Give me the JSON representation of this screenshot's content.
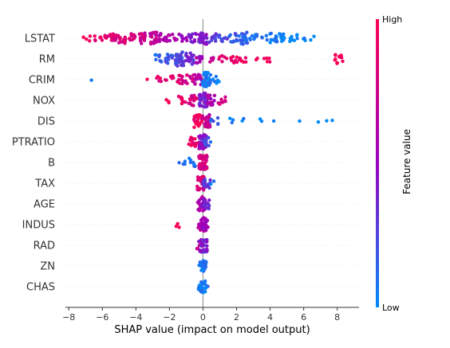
{
  "chart_data": {
    "type": "scatter",
    "subtype": "shap-beeswarm",
    "title": "",
    "xlabel": "SHAP value (impact on model output)",
    "xlim": [
      -8.2,
      9.3
    ],
    "xticks": [
      -8,
      -6,
      -4,
      -2,
      0,
      2,
      4,
      6,
      8
    ],
    "colorbar": {
      "label": "Feature value",
      "high_label": "High",
      "low_label": "Low",
      "high_color": "#ff0052",
      "mid_color": "#9a00c0",
      "low_color": "#008bfb"
    },
    "features": [
      {
        "name": "LSTAT",
        "spread": [
          {
            "x": -7.2,
            "v": 0.96,
            "n": 2
          },
          {
            "x": -6.6,
            "v": 0.9,
            "n": 5
          },
          {
            "x": -6.0,
            "v": 0.88,
            "n": 8
          },
          {
            "x": -5.4,
            "v": 0.85,
            "n": 14
          },
          {
            "x": -4.8,
            "v": 0.82,
            "n": 14
          },
          {
            "x": -4.2,
            "v": 0.78,
            "n": 10
          },
          {
            "x": -3.6,
            "v": 0.74,
            "n": 16
          },
          {
            "x": -3.0,
            "v": 0.7,
            "n": 22
          },
          {
            "x": -2.4,
            "v": 0.62,
            "n": 14
          },
          {
            "x": -1.8,
            "v": 0.55,
            "n": 8
          },
          {
            "x": -1.2,
            "v": 0.5,
            "n": 8
          },
          {
            "x": -0.6,
            "v": 0.45,
            "n": 12
          },
          {
            "x": 0.0,
            "v": 0.4,
            "n": 24
          },
          {
            "x": 0.6,
            "v": 0.32,
            "n": 10
          },
          {
            "x": 1.2,
            "v": 0.25,
            "n": 8
          },
          {
            "x": 1.8,
            "v": 0.18,
            "n": 12
          },
          {
            "x": 2.4,
            "v": 0.12,
            "n": 20
          },
          {
            "x": 3.0,
            "v": 0.08,
            "n": 8
          },
          {
            "x": 3.6,
            "v": 0.06,
            "n": 4
          },
          {
            "x": 4.2,
            "v": 0.04,
            "n": 14
          },
          {
            "x": 4.8,
            "v": 0.03,
            "n": 10
          },
          {
            "x": 5.4,
            "v": 0.02,
            "n": 8
          },
          {
            "x": 6.0,
            "v": 0.02,
            "n": 3
          },
          {
            "x": 6.5,
            "v": 0.01,
            "n": 2
          }
        ]
      },
      {
        "name": "RM",
        "spread": [
          {
            "x": -2.6,
            "v": 0.15,
            "n": 8
          },
          {
            "x": -2.0,
            "v": 0.2,
            "n": 16
          },
          {
            "x": -1.4,
            "v": 0.25,
            "n": 30
          },
          {
            "x": -0.8,
            "v": 0.35,
            "n": 20
          },
          {
            "x": -0.2,
            "v": 0.55,
            "n": 10
          },
          {
            "x": 0.4,
            "v": 0.7,
            "n": 6
          },
          {
            "x": 1.2,
            "v": 0.9,
            "n": 6
          },
          {
            "x": 1.8,
            "v": 0.92,
            "n": 8
          },
          {
            "x": 2.4,
            "v": 0.93,
            "n": 8
          },
          {
            "x": 3.2,
            "v": 0.95,
            "n": 2
          },
          {
            "x": 3.8,
            "v": 0.96,
            "n": 5
          },
          {
            "x": 8.1,
            "v": 0.99,
            "n": 12
          }
        ]
      },
      {
        "name": "CRIM",
        "spread": [
          {
            "x": -6.8,
            "v": 0.15,
            "n": 1
          },
          {
            "x": -3.2,
            "v": 0.9,
            "n": 1
          },
          {
            "x": -2.6,
            "v": 0.88,
            "n": 5
          },
          {
            "x": -2.0,
            "v": 0.86,
            "n": 6
          },
          {
            "x": -1.4,
            "v": 0.82,
            "n": 10
          },
          {
            "x": -0.8,
            "v": 0.78,
            "n": 12
          },
          {
            "x": -0.3,
            "v": 0.6,
            "n": 14
          },
          {
            "x": 0.2,
            "v": 0.05,
            "n": 40
          },
          {
            "x": 0.8,
            "v": 0.05,
            "n": 6
          }
        ]
      },
      {
        "name": "NOX",
        "spread": [
          {
            "x": -2.2,
            "v": 0.95,
            "n": 3
          },
          {
            "x": -1.2,
            "v": 0.9,
            "n": 8
          },
          {
            "x": -0.6,
            "v": 0.8,
            "n": 18
          },
          {
            "x": 0.0,
            "v": 0.4,
            "n": 36
          },
          {
            "x": 0.5,
            "v": 0.6,
            "n": 14
          },
          {
            "x": 1.1,
            "v": 0.8,
            "n": 8
          }
        ]
      },
      {
        "name": "DIS",
        "spread": [
          {
            "x": -0.3,
            "v": 0.95,
            "n": 24
          },
          {
            "x": 0.2,
            "v": 0.7,
            "n": 24
          },
          {
            "x": 0.7,
            "v": 0.15,
            "n": 6
          },
          {
            "x": 1.6,
            "v": 0.05,
            "n": 3
          },
          {
            "x": 2.4,
            "v": 0.05,
            "n": 2
          },
          {
            "x": 3.4,
            "v": 0.05,
            "n": 2
          },
          {
            "x": 4.1,
            "v": 0.05,
            "n": 1
          },
          {
            "x": 5.8,
            "v": 0.05,
            "n": 1
          },
          {
            "x": 6.7,
            "v": 0.05,
            "n": 1
          },
          {
            "x": 7.3,
            "v": 0.05,
            "n": 1
          },
          {
            "x": 7.9,
            "v": 0.05,
            "n": 1
          }
        ]
      },
      {
        "name": "PTRATIO",
        "spread": [
          {
            "x": -1.0,
            "v": 0.95,
            "n": 2
          },
          {
            "x": -0.5,
            "v": 0.9,
            "n": 14
          },
          {
            "x": 0.0,
            "v": 0.5,
            "n": 40
          },
          {
            "x": 0.2,
            "v": 0.2,
            "n": 10
          }
        ]
      },
      {
        "name": "B",
        "spread": [
          {
            "x": -1.2,
            "v": 0.05,
            "n": 4
          },
          {
            "x": -0.6,
            "v": 0.1,
            "n": 8
          },
          {
            "x": 0.0,
            "v": 0.8,
            "n": 40
          }
        ]
      },
      {
        "name": "TAX",
        "spread": [
          {
            "x": -0.1,
            "v": 0.8,
            "n": 30
          },
          {
            "x": 0.2,
            "v": 0.3,
            "n": 14
          },
          {
            "x": 0.4,
            "v": 0.1,
            "n": 2
          }
        ]
      },
      {
        "name": "AGE",
        "spread": [
          {
            "x": -0.1,
            "v": 0.6,
            "n": 30
          },
          {
            "x": 0.15,
            "v": 0.4,
            "n": 20
          }
        ]
      },
      {
        "name": "INDUS",
        "spread": [
          {
            "x": -1.4,
            "v": 0.95,
            "n": 3
          },
          {
            "x": -0.05,
            "v": 0.6,
            "n": 30
          },
          {
            "x": 0.15,
            "v": 0.5,
            "n": 10
          }
        ]
      },
      {
        "name": "RAD",
        "spread": [
          {
            "x": -0.2,
            "v": 0.8,
            "n": 6
          },
          {
            "x": 0.0,
            "v": 0.4,
            "n": 30
          }
        ]
      },
      {
        "name": "ZN",
        "spread": [
          {
            "x": -0.05,
            "v": 0.1,
            "n": 16
          },
          {
            "x": 0.05,
            "v": 0.1,
            "n": 10
          }
        ]
      },
      {
        "name": "CHAS",
        "spread": [
          {
            "x": -0.05,
            "v": 0.05,
            "n": 20
          },
          {
            "x": 0.05,
            "v": 0.1,
            "n": 12
          }
        ]
      }
    ]
  }
}
